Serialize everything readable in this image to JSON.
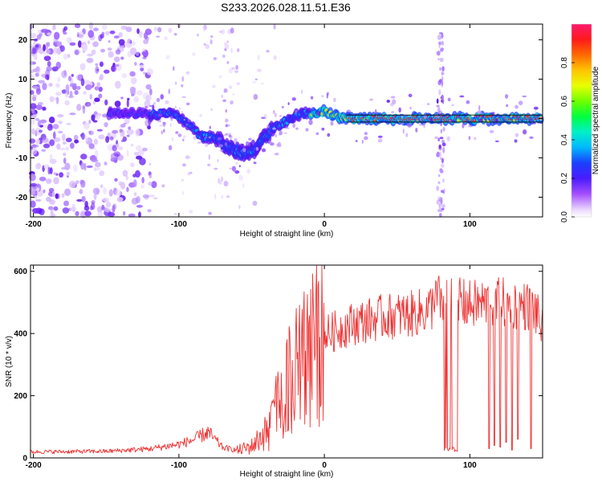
{
  "title": "S233.2026.028.11.51.E36",
  "chart_data": [
    {
      "type": "heatmap",
      "title": "S233.2026.028.11.51.E36",
      "xlabel": "Height of straight line (km)",
      "ylabel": "Frequency (Hz)",
      "xlim": [
        -202,
        150
      ],
      "ylim": [
        -25,
        24
      ],
      "xticks": [
        -200,
        -100,
        0,
        100
      ],
      "yticks": [
        -20,
        -10,
        0,
        10,
        20
      ],
      "colorbar": {
        "label": "Normalized spectral amplitude",
        "range": [
          0,
          1
        ],
        "ticks": [
          0.0,
          0.2,
          0.4,
          0.6,
          0.8
        ]
      },
      "ridge": {
        "description": "dominant Doppler trace",
        "x": [
          -145,
          -130,
          -115,
          -105,
          -95,
          -85,
          -75,
          -65,
          -55,
          -48,
          -42,
          -35,
          -28,
          -20,
          -12,
          -5,
          0,
          5,
          10,
          15,
          20,
          40,
          60,
          75,
          80,
          85,
          90,
          110,
          130,
          150
        ],
        "y": [
          1.5,
          1.2,
          1.0,
          1.5,
          -1.0,
          -4.5,
          -5.0,
          -7.5,
          -9.0,
          -8.0,
          -5.0,
          -2.5,
          -1.0,
          0.5,
          1.5,
          1.0,
          2.0,
          1.0,
          0.5,
          0.3,
          0.0,
          0.0,
          0.0,
          0.0,
          0.0,
          0.0,
          0.0,
          0.0,
          0.0,
          0.0
        ]
      },
      "spikes": [
        {
          "x": 80,
          "description": "vertical broadband streak"
        }
      ]
    },
    {
      "type": "line",
      "xlabel": "Height of straight line (km)",
      "ylabel": "SNR (10 * v/v)",
      "xlim": [
        -202,
        150
      ],
      "ylim": [
        0,
        620
      ],
      "xticks": [
        -200,
        -100,
        0,
        100
      ],
      "yticks": [
        0,
        200,
        400,
        600
      ],
      "series": [
        {
          "name": "SNR",
          "color": "#ee3333",
          "envelope_x": [
            -202,
            -150,
            -120,
            -100,
            -90,
            -80,
            -70,
            -60,
            -50,
            -40,
            -35,
            -30,
            -25,
            -20,
            -15,
            -10,
            -5,
            0,
            10,
            20,
            30,
            40,
            50,
            60,
            70,
            75,
            80,
            83,
            85,
            90,
            95,
            100,
            110,
            120,
            130,
            140,
            145,
            150
          ],
          "envelope_y": [
            20,
            22,
            30,
            45,
            60,
            85,
            35,
            25,
            40,
            90,
            150,
            200,
            250,
            300,
            330,
            360,
            380,
            400,
            420,
            440,
            450,
            460,
            465,
            470,
            480,
            500,
            520,
            520,
            510,
            505,
            505,
            500,
            505,
            510,
            500,
            495,
            480,
            420
          ],
          "dropouts": [
            {
              "x_from": 82,
              "x_to": 92,
              "y": 20
            },
            {
              "x": 113,
              "y": 30
            },
            {
              "x": 117,
              "y": 40
            },
            {
              "x": 121,
              "y": 35
            },
            {
              "x": 125,
              "y": 50
            },
            {
              "x": 129,
              "y": 25
            },
            {
              "x": 133,
              "y": 60
            },
            {
              "x": 142,
              "y": 30
            }
          ]
        }
      ]
    }
  ]
}
